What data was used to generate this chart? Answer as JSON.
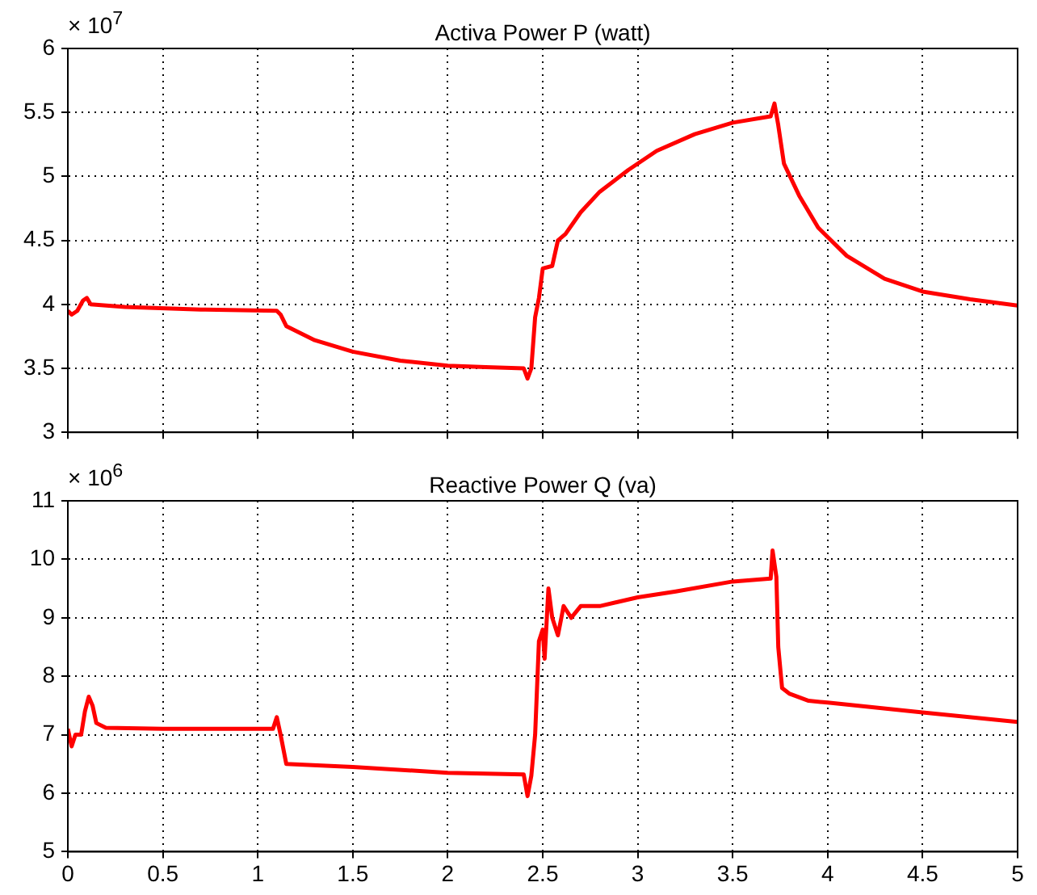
{
  "chart_data": [
    {
      "type": "line",
      "title": "Activa Power P (watt)",
      "annotations": [
        "× 10$^{7}$"
      ],
      "tick_labels": "y",
      "grid": true,
      "xlim": [
        0,
        5
      ],
      "xticks": [
        0,
        0.5,
        1,
        1.5,
        2,
        2.5,
        3,
        3.5,
        4,
        4.5,
        5
      ],
      "ylim": [
        3,
        6
      ],
      "yticks": [
        3,
        3.5,
        4,
        4.5,
        5,
        5.5,
        6
      ],
      "series": [
        {
          "color": "#ff0000",
          "x": [
            0,
            0.02,
            0.05,
            0.08,
            0.1,
            0.12,
            0.3,
            0.7,
            1.1,
            1.12,
            1.15,
            1.3,
            1.5,
            1.75,
            2.0,
            2.2,
            2.4,
            2.42,
            2.44,
            2.46,
            2.48,
            2.5,
            2.55,
            2.58,
            2.62,
            2.7,
            2.8,
            2.95,
            3.1,
            3.3,
            3.5,
            3.7,
            3.72,
            3.74,
            3.77,
            3.85,
            3.95,
            4.1,
            4.3,
            4.5,
            4.75,
            5.0
          ],
          "values": [
            3.95,
            3.92,
            3.95,
            4.03,
            4.05,
            4.0,
            3.98,
            3.96,
            3.95,
            3.92,
            3.83,
            3.72,
            3.63,
            3.56,
            3.52,
            3.51,
            3.5,
            3.42,
            3.5,
            3.9,
            4.05,
            4.28,
            4.3,
            4.5,
            4.55,
            4.72,
            4.88,
            5.05,
            5.2,
            5.33,
            5.42,
            5.47,
            5.57,
            5.4,
            5.1,
            4.85,
            4.6,
            4.38,
            4.2,
            4.1,
            4.04,
            3.99
          ]
        }
      ]
    },
    {
      "type": "line",
      "title": "Reactive Power Q (va)",
      "annotations": [
        "× 10$^{6}$"
      ],
      "grid": true,
      "xlim": [
        0,
        5
      ],
      "xticks": [
        0,
        0.5,
        1,
        1.5,
        2,
        2.5,
        3,
        3.5,
        4,
        4.5,
        5
      ],
      "ylim": [
        5,
        11
      ],
      "yticks": [
        5,
        6,
        7,
        8,
        9,
        10,
        11
      ],
      "series": [
        {
          "color": "#ff0000",
          "x": [
            0,
            0.02,
            0.04,
            0.07,
            0.09,
            0.11,
            0.13,
            0.15,
            0.2,
            0.5,
            1.08,
            1.1,
            1.12,
            1.15,
            1.5,
            2.0,
            2.4,
            2.42,
            2.44,
            2.46,
            2.48,
            2.5,
            2.51,
            2.53,
            2.55,
            2.58,
            2.61,
            2.65,
            2.7,
            2.8,
            3.0,
            3.2,
            3.5,
            3.7,
            3.71,
            3.73,
            3.74,
            3.76,
            3.8,
            3.9,
            4.0,
            4.5,
            5.0
          ],
          "values": [
            7.1,
            6.8,
            7.0,
            7.0,
            7.4,
            7.65,
            7.5,
            7.2,
            7.12,
            7.1,
            7.1,
            7.3,
            7.0,
            6.5,
            6.45,
            6.35,
            6.32,
            5.95,
            6.3,
            7.0,
            8.6,
            8.8,
            8.3,
            9.5,
            9.0,
            8.7,
            9.2,
            9.0,
            9.2,
            9.2,
            9.35,
            9.45,
            9.62,
            9.67,
            10.15,
            9.7,
            8.5,
            7.8,
            7.7,
            7.58,
            7.55,
            7.38,
            7.22
          ]
        }
      ]
    }
  ]
}
